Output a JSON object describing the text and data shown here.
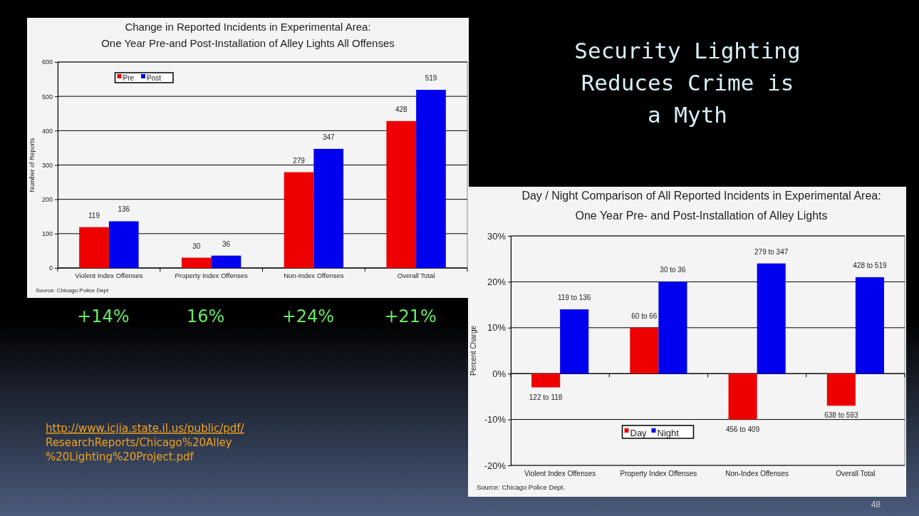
{
  "chart_data": [
    {
      "type": "bar",
      "title": "Change in Reported Incidents in Experimental Area:\nOne Year Pre-and Post-Installation of Alley Lights All Offenses",
      "ylabel": "Number of Reports",
      "categories": [
        "Violent Index Offenses",
        "Property Index Offenses",
        "Non-Index Offenses",
        "Overall Total"
      ],
      "series": [
        {
          "name": "Pre",
          "color": "#ee0000",
          "values": [
            119,
            30,
            279,
            428
          ]
        },
        {
          "name": "Post",
          "color": "#0000ee",
          "values": [
            136,
            36,
            347,
            519
          ]
        }
      ],
      "ylim": [
        0,
        600
      ],
      "yticks": [
        0,
        100,
        200,
        300,
        400,
        500,
        600
      ],
      "grid": "y",
      "legend": "top left",
      "data_labels": true,
      "annotations": [
        "Source: Chicago Police Dept",
        "+14%",
        "16%",
        "+24%",
        "+21%"
      ]
    },
    {
      "type": "bar",
      "title": "Day / Night Comparison of All Reported Incidents in Experimental Area:\nOne Year Pre- and Post-Installation of Alley Lights",
      "ylabel": "Percent Charge",
      "categories": [
        "Violent Index Offenses",
        "Property Index Offenses",
        "Non-Index Offenses",
        "Overall Total"
      ],
      "series": [
        {
          "name": "Day",
          "color": "#ee0000",
          "values": [
            -3,
            10,
            -10,
            -7
          ]
        },
        {
          "name": "Night",
          "color": "#0000ee",
          "values": [
            14,
            20,
            24,
            21
          ]
        }
      ],
      "ylim": [
        -20,
        30
      ],
      "yticks": [
        {
          "value": -20,
          "label": "-20%"
        },
        {
          "value": -10,
          "label": "-10%"
        },
        {
          "value": 0,
          "label": "0%"
        },
        {
          "value": 10,
          "label": "10%"
        },
        {
          "value": 20,
          "label": "20%"
        },
        {
          "value": 30,
          "label": "30%"
        }
      ],
      "grid": "y",
      "legend": "bottom",
      "annotations": [
        "Source: Chicago Police Dept.",
        {
          "text": "122 to 118",
          "x": "Violent Index Offenses",
          "y": -3
        },
        {
          "text": "119 to 136",
          "x": "Violent Index Offenses",
          "y": 14
        },
        {
          "text": "60 to 66",
          "x": "Property Index Offenses",
          "y": 10
        },
        {
          "text": "30 to 36",
          "x": "Property Index Offenses",
          "y": 20
        },
        {
          "text": "456 to 409",
          "x": "Non-Index Offenses",
          "y": -10
        },
        {
          "text": "279 to 347",
          "x": "Non-Index Offenses",
          "y": 24
        },
        {
          "text": "638 to 593",
          "x": "Overall Total",
          "y": -7
        },
        {
          "text": "428 to 519",
          "x": "Overall Total",
          "y": 21
        }
      ]
    },
    {
      "type": "other",
      "title": "Security Lighting\nReduces Crime is\na Myth",
      "annotations": [
        "http://www.icjia.state.il.us/public/pdf/\nResearchReports/Chicago%20Alley\n%20Lighting%20Project.pdf",
        "48"
      ]
    }
  ]
}
